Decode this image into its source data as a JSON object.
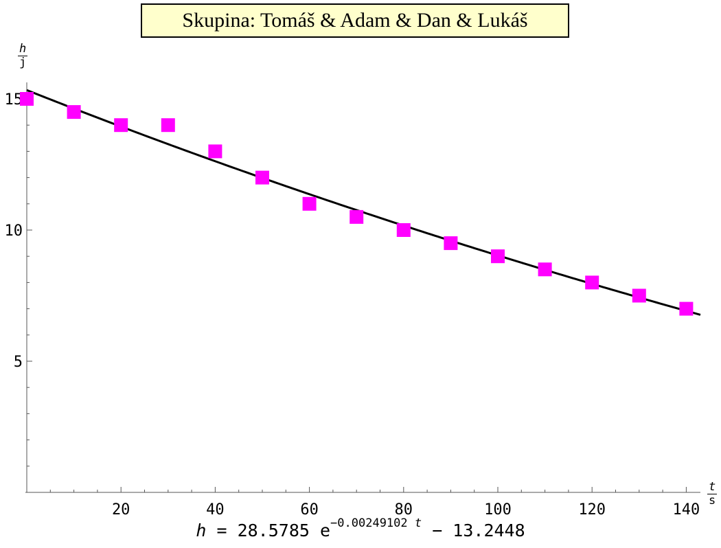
{
  "chart_data": {
    "type": "scatter",
    "title": "Skupina: Tomáš & Adam & Dan & Lukáš",
    "ylabel": {
      "num": "h",
      "den": "j"
    },
    "xlabel": {
      "num": "t",
      "den": "s"
    },
    "xlim": [
      0,
      143
    ],
    "ylim": [
      0,
      15.7
    ],
    "x_ticks": [
      20,
      40,
      60,
      80,
      100,
      120,
      140
    ],
    "y_ticks": [
      5,
      10,
      15
    ],
    "points": [
      [
        0,
        15
      ],
      [
        10,
        14.5
      ],
      [
        20,
        14
      ],
      [
        30,
        14
      ],
      [
        40,
        13
      ],
      [
        50,
        12
      ],
      [
        60,
        11
      ],
      [
        70,
        10.5
      ],
      [
        80,
        10
      ],
      [
        90,
        9.5
      ],
      [
        100,
        9
      ],
      [
        110,
        8.5
      ],
      [
        120,
        8
      ],
      [
        130,
        7.5
      ],
      [
        140,
        7
      ]
    ],
    "fit": {
      "a": 28.5785,
      "k": -0.00249102,
      "c": -13.2448
    },
    "marker_color": "#ff00ff",
    "line_color": "#000000",
    "title_bg": "#ffffcc",
    "formula": {
      "lhs": "h",
      "eq": "=",
      "coef": "28.5785",
      "e": "e",
      "exponent": "−0.00249102",
      "exp_var": "t",
      "rest": "− 13.2448"
    }
  }
}
